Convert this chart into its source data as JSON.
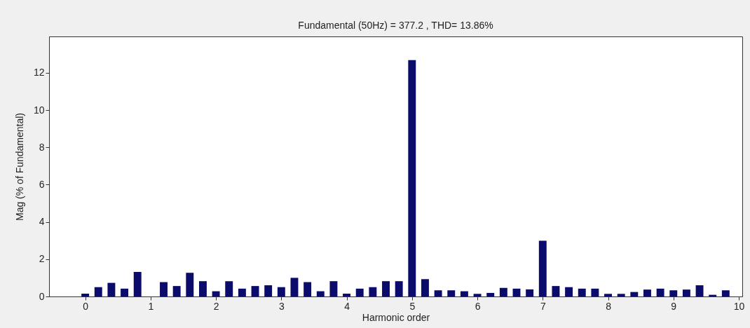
{
  "chart_data": {
    "type": "bar",
    "title": "Fundamental (50Hz) = 377.2 , THD= 13.86%",
    "xlabel": "Harmonic order",
    "ylabel": "Mag (% of Fundamental)",
    "x": [
      0,
      0.2,
      0.4,
      0.6,
      0.8,
      1,
      1.2,
      1.4,
      1.6,
      1.8,
      2,
      2.2,
      2.4,
      2.6,
      2.8,
      3,
      3.2,
      3.4,
      3.6,
      3.8,
      4,
      4.2,
      4.4,
      4.6,
      4.8,
      5,
      5.2,
      5.4,
      5.6,
      5.8,
      6,
      6.2,
      6.4,
      6.6,
      6.8,
      7,
      7.2,
      7.4,
      7.6,
      7.8,
      8,
      8.2,
      8.4,
      8.6,
      8.8,
      9,
      9.2,
      9.4,
      9.6,
      9.8
    ],
    "values": [
      0.15,
      0.5,
      0.73,
      0.42,
      1.32,
      null,
      0.77,
      0.56,
      1.27,
      0.82,
      0.28,
      0.82,
      0.42,
      0.56,
      0.6,
      0.5,
      1.0,
      0.77,
      0.28,
      0.82,
      0.15,
      0.42,
      0.5,
      0.82,
      0.82,
      12.68,
      0.93,
      0.33,
      0.33,
      0.28,
      0.14,
      0.19,
      0.46,
      0.42,
      0.38,
      2.99,
      0.56,
      0.5,
      0.42,
      0.42,
      0.14,
      0.14,
      0.24,
      0.37,
      0.42,
      0.33,
      0.37,
      0.6,
      0.09,
      0.33
    ],
    "color": "#0b0b6b",
    "xlim": [
      -0.5,
      10
    ],
    "xticks": [
      0,
      1,
      2,
      3,
      4,
      5,
      6,
      7,
      8,
      9,
      10
    ],
    "ylim": [
      0,
      13.95
    ],
    "yticks": [
      0,
      2,
      4,
      6,
      8,
      10,
      12
    ],
    "grid": false
  }
}
